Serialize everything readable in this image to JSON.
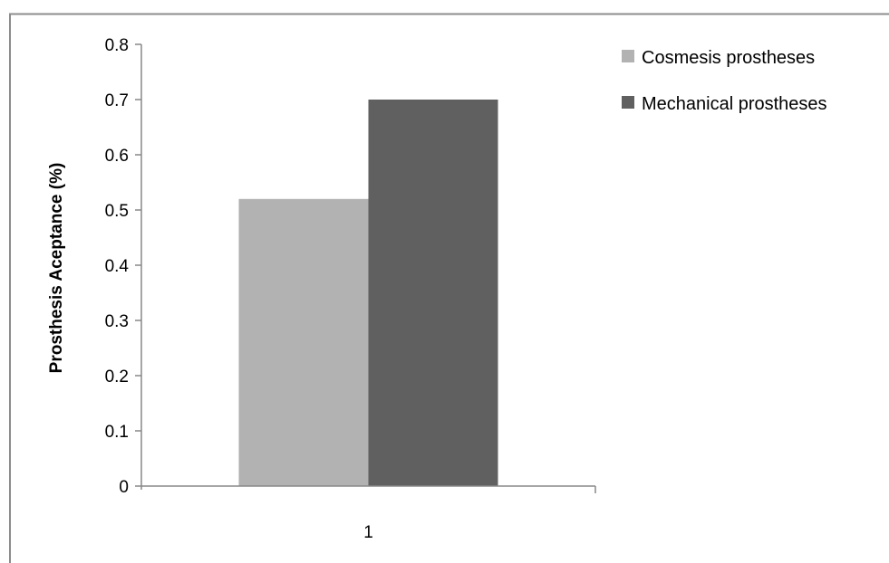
{
  "chart_data": {
    "type": "bar",
    "categories": [
      "1"
    ],
    "series": [
      {
        "name": "Cosmesis prostheses",
        "values": [
          0.52
        ],
        "color": "#b2b2b2"
      },
      {
        "name": "Mechanical prostheses",
        "values": [
          0.7
        ],
        "color": "#606060"
      }
    ],
    "title": "",
    "xlabel": "",
    "ylabel": "Prosthesis Aceptance (%)",
    "ylim": [
      0,
      0.8
    ],
    "yticks": [
      "0",
      "0.1",
      "0.2",
      "0.3",
      "0.4",
      "0.5",
      "0.6",
      "0.7",
      "0.8"
    ],
    "grid": false,
    "legend_position": "top-right"
  }
}
